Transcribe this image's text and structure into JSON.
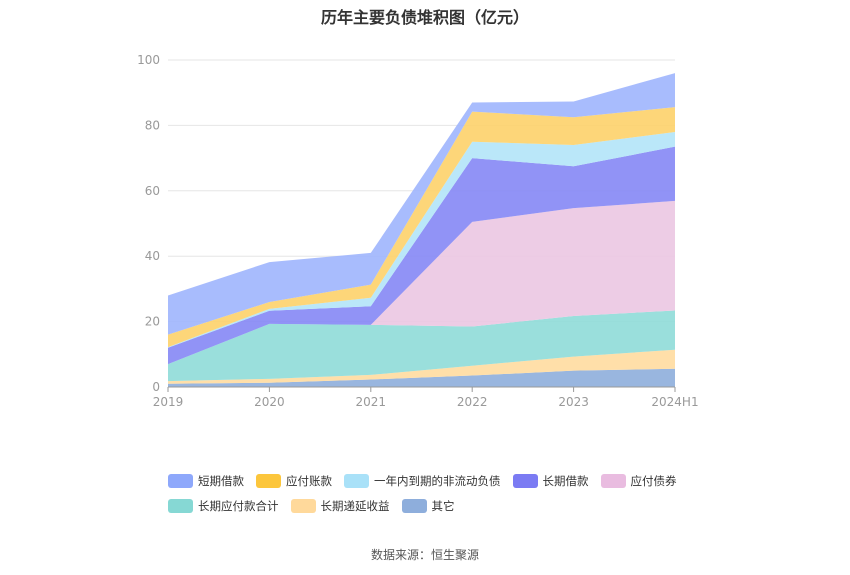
{
  "chart_data": {
    "type": "area",
    "stacked": true,
    "title": "历年主要负债堆积图（亿元）",
    "categories": [
      "2019",
      "2020",
      "2021",
      "2022",
      "2023",
      "2024H1"
    ],
    "ylim": [
      0,
      100
    ],
    "yticks": [
      "0",
      "20",
      "40",
      "60",
      "80",
      "100"
    ],
    "grid": true,
    "legend_position": "bottom",
    "series": [
      {
        "name": "其它",
        "color": "#8eaedc",
        "values": [
          1.0,
          1.3,
          2.3,
          3.5,
          5.0,
          5.6
        ]
      },
      {
        "name": "长期递延收益",
        "color": "#ffdca0",
        "values": [
          0.8,
          1.2,
          1.4,
          3.0,
          4.3,
          5.8
        ]
      },
      {
        "name": "长期应付款合计",
        "color": "#8fdbd8",
        "values": [
          5.2,
          16.8,
          15.3,
          12.0,
          12.4,
          12.0
        ]
      },
      {
        "name": "应付债券",
        "color": "#ebc6e2",
        "values": [
          0,
          0,
          0,
          32.0,
          33.0,
          33.5
        ]
      },
      {
        "name": "长期借款",
        "color": "#8587f5",
        "values": [
          5.0,
          4.0,
          5.7,
          19.5,
          12.8,
          16.6
        ]
      },
      {
        "name": "一年内到期的非流动负债",
        "color": "#b2e4f8",
        "values": [
          0.2,
          0.6,
          2.6,
          5.0,
          6.5,
          4.5
        ]
      },
      {
        "name": "应付账款",
        "color": "#fdd26a",
        "values": [
          3.8,
          2.1,
          4.0,
          9.2,
          8.5,
          7.6
        ]
      },
      {
        "name": "短期借款",
        "color": "#9eb5fd",
        "values": [
          12.0,
          12.2,
          9.7,
          2.8,
          4.8,
          10.4
        ]
      }
    ]
  },
  "legend": {
    "row1": [
      {
        "label": "短期借款",
        "color": "#8ea8fb"
      },
      {
        "label": "应付账款",
        "color": "#fcc63c"
      },
      {
        "label": "一年内到期的非流动负债",
        "color": "#a9e1f8"
      },
      {
        "label": "长期借款",
        "color": "#7b7bf3"
      },
      {
        "label": "应付债券",
        "color": "#e9bce0"
      }
    ],
    "row2": [
      {
        "label": "长期应付款合计",
        "color": "#86d8d4"
      },
      {
        "label": "长期递延收益",
        "color": "#ffd99b"
      },
      {
        "label": "其它",
        "color": "#8eaedc"
      }
    ]
  },
  "source": "数据来源：恒生聚源"
}
